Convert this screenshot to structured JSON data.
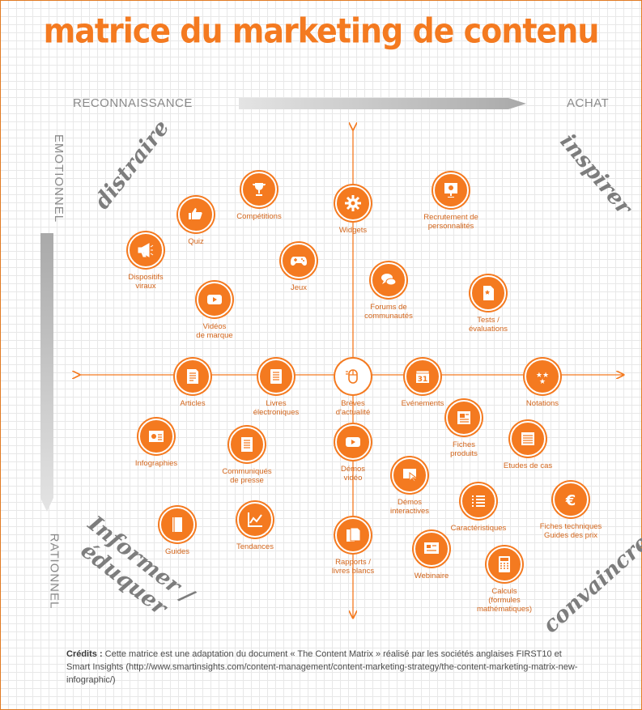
{
  "title": "matrice du marketing de contenu",
  "axes": {
    "left": "RECONNAISSANCE",
    "right": "ACHAT",
    "top": "EMOTIONNEL",
    "bottom": "RATIONNEL"
  },
  "quadrants": {
    "top_left": "distraire",
    "top_right": "inspirer",
    "bottom_left_1": "Informer /",
    "bottom_left_2": "éduquer",
    "bottom_right": "convaincre"
  },
  "nodes": [
    {
      "label": "Compétitions",
      "icon": "trophy-icon"
    },
    {
      "label": "Quiz",
      "icon": "thumbs-icon"
    },
    {
      "label": "Dispositifs\nviraux",
      "icon": "megaphone-icon"
    },
    {
      "label": "Jeux",
      "icon": "gamepad-icon"
    },
    {
      "label": "Vidéos\nde marque",
      "icon": "play-icon"
    },
    {
      "label": "Widgets",
      "icon": "gear-icon"
    },
    {
      "label": "Recrutement de\npersonnalités",
      "icon": "celebrity-icon"
    },
    {
      "label": "Forums de\ncommunautés",
      "icon": "chat-icon"
    },
    {
      "label": "Tests /\névaluations",
      "icon": "review-icon"
    },
    {
      "label": "Articles",
      "icon": "article-icon"
    },
    {
      "label": "Livres\nélectroniques",
      "icon": "ebook-icon"
    },
    {
      "label": "Brèves\nd'actualité",
      "icon": "mouse-icon"
    },
    {
      "label": "Evénements",
      "icon": "calendar-icon"
    },
    {
      "label": "Notations",
      "icon": "stars-icon"
    },
    {
      "label": "Fiches\nproduits",
      "icon": "product-sheet-icon"
    },
    {
      "label": "Etudes de cas",
      "icon": "case-study-icon"
    },
    {
      "label": "Infographies",
      "icon": "infographic-icon"
    },
    {
      "label": "Communiqués\nde presse",
      "icon": "press-release-icon"
    },
    {
      "label": "Démos\nvidéo",
      "icon": "video-demo-icon"
    },
    {
      "label": "Démos\ninteractives",
      "icon": "interactive-demo-icon"
    },
    {
      "label": "Caractéristiques",
      "icon": "list-icon"
    },
    {
      "label": "Fiches techniques\nGuides des prix",
      "icon": "euro-icon"
    },
    {
      "label": "Guides",
      "icon": "book-icon"
    },
    {
      "label": "Tendances",
      "icon": "trend-icon"
    },
    {
      "label": "Rapports /\nlivres blancs",
      "icon": "documents-icon"
    },
    {
      "label": "Webinaire",
      "icon": "webinar-icon"
    },
    {
      "label": "Calculs\n(formules\nmathématiques)",
      "icon": "calculator-icon"
    }
  ],
  "credits": {
    "prefix": "Crédits :",
    "text": " Cette matrice est une adaptation du document « The Content Matrix » réalisé par les sociétés anglaises FIRST10 et Smart Insights (http://www.smartinsights.com/content-management/content-marketing-strategy/the-content-marketing-matrix-new-infographic/)"
  },
  "colors": {
    "accent": "#f47a20",
    "text_grey": "#8a8a8a"
  }
}
